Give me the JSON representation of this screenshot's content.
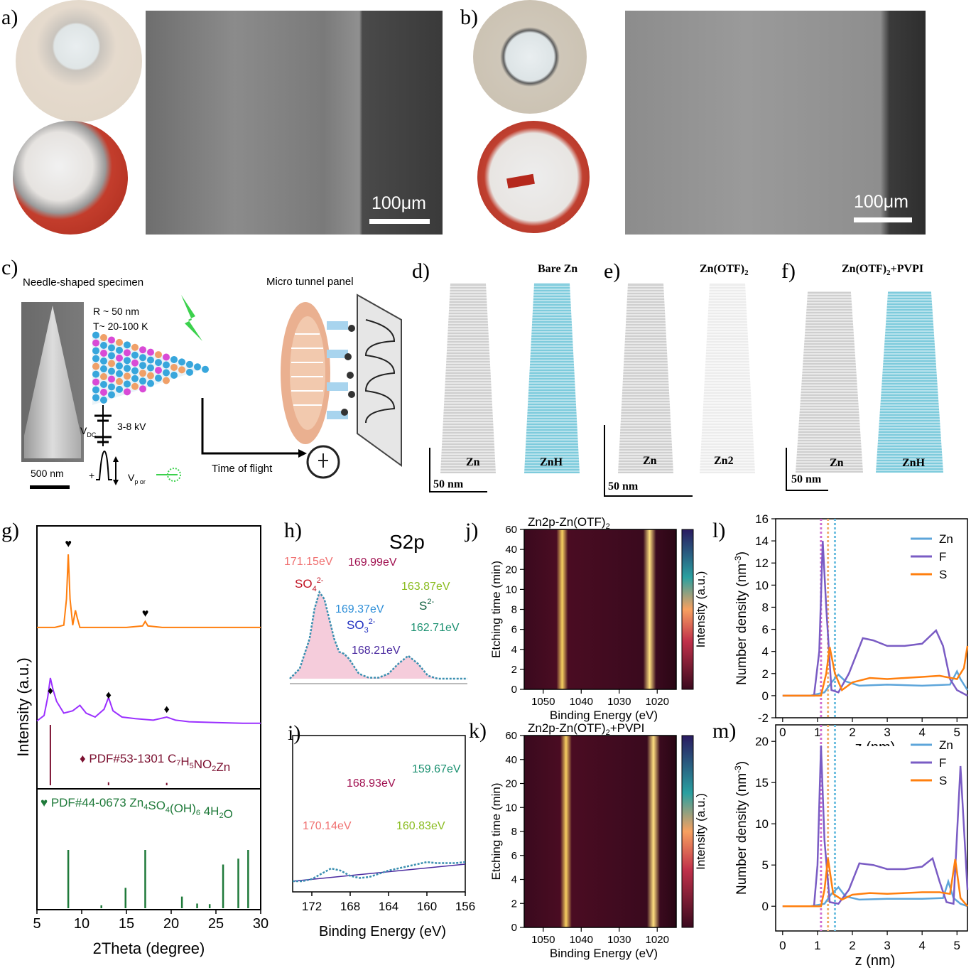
{
  "panel_labels": {
    "a": "a)",
    "b": "b)",
    "c": "c)",
    "d": "d)",
    "e": "e)",
    "f": "f)",
    "g": "g)",
    "h": "h)",
    "i": "i)",
    "j": "j)",
    "k": "k)",
    "l": "l)",
    "m": "m)"
  },
  "scalebars": {
    "a": "100μm",
    "b": "100μm",
    "c": "500 nm",
    "d": "50 nm",
    "e": "50 nm",
    "f": "50 nm"
  },
  "schematic": {
    "needle_title": "Needle-shaped specimen",
    "radius": "R ~ 50 nm",
    "temperature": "T~ 20-100 K",
    "voltage_label": "V",
    "voltage_sub": "DC",
    "voltage_range": "3-8 kV",
    "pulse_label": "V",
    "pulse_sub": "p or",
    "plus": "+",
    "panel_title": "Micro tunnel panel",
    "tof": "Time of flight"
  },
  "apt": {
    "d": {
      "title": "Bare Zn",
      "left": "Zn",
      "right": "ZnH"
    },
    "e": {
      "title": "Zn(OTF)",
      "title_sub": "2",
      "left": "Zn",
      "right": "Zn2"
    },
    "f": {
      "title": "Zn(OTF)",
      "title_sub": "2",
      "title_tail": "+PVPI",
      "left": "Zn",
      "right": "ZnH"
    }
  },
  "colors": {
    "orange": "#ff7f0e",
    "purple": "#9b30ff",
    "maroon": "#7b1030",
    "green": "#1f7a3a",
    "zn_line": "#5da5da",
    "f_line": "#7a5cc4",
    "s_line": "#ff7f0e"
  },
  "chart_data": [
    {
      "id": "g",
      "type": "line",
      "xlabel": "2Theta (degree)",
      "ylabel": "Intensity (a.u.)",
      "xlim": [
        5,
        30
      ],
      "xticks": [
        5,
        10,
        15,
        20,
        25,
        30
      ],
      "markers": {
        "heart": "♥",
        "diamond": "♦"
      },
      "ref_purple": {
        "label": "PDF#53-1301 C",
        "formula_sub1": "7",
        "formula_mid": "H",
        "formula_sub2": "5",
        "formula_tail": "NO",
        "formula_sub3": "2",
        "formula_end": "Zn",
        "sticks": [
          [
            6.5,
            1.0
          ],
          [
            13.0,
            0.05
          ],
          [
            19.5,
            0.04
          ]
        ]
      },
      "ref_green": {
        "label": "PDF#44-0673 Zn",
        "sub1": "4",
        "mid": "SO",
        "sub2": "4",
        "mid2": "(OH)",
        "sub3": "6",
        "tail": " 4H",
        "sub4": "2",
        "end": "O",
        "sticks": [
          [
            8.5,
            1.0
          ],
          [
            12.2,
            0.05
          ],
          [
            14.9,
            0.35
          ],
          [
            17.1,
            1.0
          ],
          [
            21.2,
            0.2
          ],
          [
            22.9,
            0.08
          ],
          [
            24.3,
            0.07
          ],
          [
            25.8,
            0.75
          ],
          [
            27.5,
            0.85
          ],
          [
            28.6,
            1.0
          ]
        ]
      },
      "series": [
        {
          "name": "",
          "color": "orange",
          "x": [
            5,
            7,
            8,
            8.3,
            8.5,
            8.7,
            9.0,
            9.3,
            9.5,
            9.8,
            10.5,
            12,
            15,
            16.8,
            17.1,
            17.4,
            19,
            22,
            25,
            28,
            30
          ],
          "y": [
            0.02,
            0.02,
            0.05,
            0.4,
            1.0,
            0.4,
            0.05,
            0.25,
            0.15,
            0.02,
            0.02,
            0.02,
            0.02,
            0.04,
            0.1,
            0.04,
            0.02,
            0.02,
            0.02,
            0.02,
            0.02
          ]
        },
        {
          "name": "",
          "color": "purple",
          "x": [
            5,
            5.8,
            6.2,
            6.5,
            6.8,
            7.2,
            8,
            9,
            9.8,
            10.5,
            11.5,
            12.5,
            13,
            13.5,
            14.5,
            16,
            18,
            19.5,
            20.5,
            22,
            25,
            28,
            30
          ],
          "y": [
            0.05,
            0.12,
            0.35,
            0.6,
            0.45,
            0.3,
            0.15,
            0.18,
            0.25,
            0.15,
            0.1,
            0.2,
            0.35,
            0.18,
            0.1,
            0.08,
            0.06,
            0.1,
            0.06,
            0.04,
            0.03,
            0.02,
            0.02
          ]
        }
      ]
    },
    {
      "id": "h",
      "type": "line",
      "title": "S2p",
      "xlim": [
        174,
        156
      ],
      "annotations": [
        "171.15eV",
        "169.99eV",
        "169.37eV",
        "168.21eV",
        "163.87eV",
        "162.71eV"
      ],
      "species": {
        "sulfate": "SO",
        "sulfate_sub": "4",
        "sulfate_sup": "2-",
        "sulfite": "SO",
        "sulfite_sub": "3",
        "sulfite_sup": "2-",
        "sulfide": "S",
        "sulfide_sup": "2-"
      },
      "x": [
        174,
        173,
        172,
        171.5,
        171,
        170.5,
        170,
        169.5,
        169,
        168.5,
        168,
        167,
        166,
        165,
        164,
        163,
        162,
        161,
        160,
        159,
        158,
        157,
        156
      ],
      "y": [
        0.05,
        0.15,
        0.45,
        0.75,
        0.92,
        0.85,
        0.65,
        0.45,
        0.32,
        0.3,
        0.25,
        0.1,
        0.06,
        0.06,
        0.1,
        0.2,
        0.28,
        0.2,
        0.08,
        0.05,
        0.05,
        0.05,
        0.05
      ]
    },
    {
      "id": "i",
      "type": "line",
      "xlabel": "Binding Energy (eV)",
      "xlim": [
        174,
        156
      ],
      "xticks": [
        172,
        168,
        164,
        160,
        156
      ],
      "annotations": [
        "170.14eV",
        "168.93eV",
        "160.83eV",
        "159.67eV"
      ],
      "x": [
        174,
        173,
        172,
        171,
        170,
        169,
        168,
        167,
        166,
        165,
        164,
        163,
        162,
        161,
        160,
        159,
        158,
        157,
        156
      ],
      "y": [
        0.1,
        0.1,
        0.12,
        0.17,
        0.22,
        0.2,
        0.15,
        0.13,
        0.14,
        0.17,
        0.2,
        0.22,
        0.24,
        0.26,
        0.28,
        0.27,
        0.27,
        0.27,
        0.28
      ]
    },
    {
      "id": "j",
      "type": "heatmap",
      "title": "Zn2p-Zn(OTF)",
      "title_sub": "2",
      "xlabel": "Binding Energy (eV)",
      "ylabel": "Etching time (min)",
      "colorbar": "Intensity (a.u.)",
      "xlim": [
        1055,
        1015
      ],
      "xticks": [
        1050,
        1040,
        1030,
        1020
      ],
      "yticks": [
        0,
        2,
        4,
        6,
        8,
        10,
        20,
        40,
        60
      ],
      "bands_eV": [
        1045,
        1022
      ]
    },
    {
      "id": "k",
      "type": "heatmap",
      "title": "Zn2p-Zn(OTF)",
      "title_sub": "2",
      "title_tail": "+PVPI",
      "xlabel": "Binding Energy (eV)",
      "ylabel": "Etching time (min)",
      "colorbar": "Intensity (a.u.)",
      "xlim": [
        1055,
        1015
      ],
      "xticks": [
        1050,
        1040,
        1030,
        1020
      ],
      "yticks": [
        0,
        2,
        4,
        6,
        8,
        10,
        20,
        40,
        60
      ],
      "bands_eV": [
        1044,
        1021
      ]
    },
    {
      "id": "l",
      "type": "line",
      "xlabel": "z (nm)",
      "ylabel": "Number density (nm",
      "ylabel_sup": "-3",
      "ylabel_tail": ")",
      "xlim": [
        -0.2,
        5.3
      ],
      "ylim": [
        -2,
        16
      ],
      "xticks": [
        0,
        1,
        2,
        3,
        4,
        5
      ],
      "yticks": [
        -2,
        0,
        2,
        4,
        6,
        8,
        10,
        12,
        14,
        16
      ],
      "series": [
        {
          "name": "Zn",
          "color": "zn_line",
          "x": [
            0,
            0.8,
            1.2,
            1.4,
            1.6,
            1.8,
            2.2,
            3,
            4,
            4.8,
            5.0,
            5.1,
            5.3
          ],
          "y": [
            0,
            0,
            0.3,
            1.2,
            1.9,
            1.3,
            0.9,
            1.0,
            0.9,
            1.0,
            2.2,
            1.5,
            0.5
          ]
        },
        {
          "name": "F",
          "color": "f_line",
          "x": [
            0,
            0.9,
            1.05,
            1.15,
            1.25,
            1.4,
            1.6,
            1.9,
            2.3,
            2.6,
            3,
            3.5,
            4,
            4.4,
            4.6,
            4.8,
            5.0,
            5.3
          ],
          "y": [
            0,
            0,
            4,
            14,
            8,
            0.5,
            0.3,
            2,
            5.2,
            5.0,
            4.5,
            4.5,
            4.7,
            5.9,
            4.5,
            1.5,
            0.5,
            0
          ],
          "dummy": null
        },
        {
          "name": "S",
          "color": "s_line",
          "x": [
            0,
            1.1,
            1.25,
            1.35,
            1.5,
            1.7,
            2,
            2.5,
            3,
            3.5,
            4,
            4.5,
            5,
            5.2,
            5.3
          ],
          "y": [
            0,
            0,
            2,
            4.4,
            2,
            0.5,
            1.2,
            1.6,
            1.5,
            1.6,
            1.7,
            1.8,
            1.5,
            2.5,
            4.5
          ]
        }
      ]
    },
    {
      "id": "m",
      "type": "line",
      "xlabel": "z (nm)",
      "ylabel": "Number density (nm",
      "ylabel_sup": "-3",
      "ylabel_tail": ")",
      "xlim": [
        -0.2,
        5.3
      ],
      "ylim": [
        -3,
        22
      ],
      "xticks": [
        0,
        1,
        2,
        3,
        4,
        5
      ],
      "yticks": [
        0,
        5,
        10,
        15,
        20
      ],
      "series": [
        {
          "name": "Zn",
          "color": "zn_line",
          "x": [
            0,
            0.8,
            1.2,
            1.4,
            1.6,
            1.8,
            2.2,
            3,
            4,
            4.6,
            4.75,
            4.9,
            5.1,
            5.3
          ],
          "y": [
            0,
            0,
            0.3,
            1.5,
            2.3,
            1.2,
            0.8,
            0.9,
            0.9,
            1.0,
            3.0,
            1.0,
            0.3,
            0
          ]
        },
        {
          "name": "F",
          "color": "f_line",
          "x": [
            0,
            0.9,
            1.0,
            1.1,
            1.2,
            1.35,
            1.6,
            1.9,
            2.2,
            2.6,
            3,
            3.5,
            4,
            4.3,
            4.5,
            4.7,
            4.9,
            5.1,
            5.3
          ],
          "y": [
            0,
            0,
            5,
            19.5,
            8,
            0.5,
            0.3,
            2,
            5.2,
            5.0,
            4.5,
            4.5,
            4.8,
            5.8,
            3,
            0.5,
            0.3,
            17,
            2
          ]
        },
        {
          "name": "S",
          "color": "s_line",
          "x": [
            0,
            1.1,
            1.2,
            1.3,
            1.45,
            1.7,
            2,
            2.5,
            3,
            3.5,
            4,
            4.5,
            4.8,
            4.95,
            5.1,
            5.3
          ],
          "y": [
            0,
            0,
            2,
            5.8,
            1.5,
            0.8,
            1.4,
            1.6,
            1.5,
            1.6,
            1.7,
            1.7,
            1.5,
            5.7,
            1,
            0
          ]
        }
      ]
    }
  ]
}
